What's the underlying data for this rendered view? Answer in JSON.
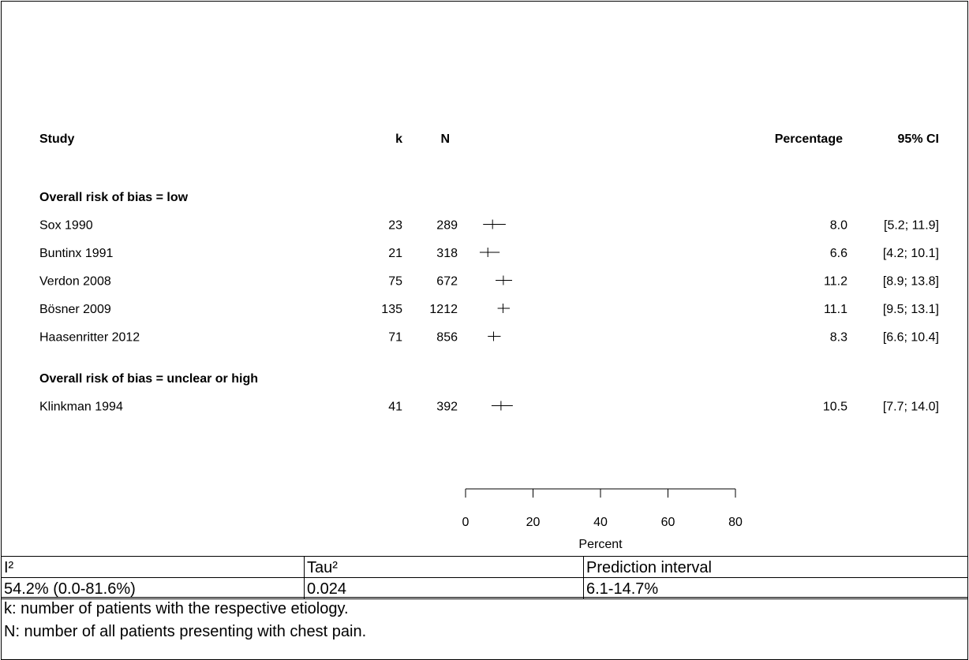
{
  "chart_data": {
    "type": "forest",
    "headers": {
      "study": "Study",
      "k": "k",
      "n": "N",
      "estimate": "Percentage",
      "ci": "95% CI"
    },
    "groups": [
      {
        "label": "Overall risk of bias = low",
        "studies": [
          {
            "name": "Sox 1990",
            "k": "23",
            "n": "289",
            "est": 8.0,
            "lo": 5.2,
            "hi": 11.9,
            "label": "8.0",
            "ci": "[5.2; 11.9]"
          },
          {
            "name": "Buntinx 1991",
            "k": "21",
            "n": "318",
            "est": 6.6,
            "lo": 4.2,
            "hi": 10.1,
            "label": "6.6",
            "ci": "[4.2; 10.1]"
          },
          {
            "name": "Verdon 2008",
            "k": "75",
            "n": "672",
            "est": 11.2,
            "lo": 8.9,
            "hi": 13.8,
            "label": "11.2",
            "ci": "[8.9; 13.8]"
          },
          {
            "name": "Bösner 2009",
            "k": "135",
            "n": "1212",
            "est": 11.1,
            "lo": 9.5,
            "hi": 13.1,
            "label": "11.1",
            "ci": "[9.5; 13.1]"
          },
          {
            "name": "Haasenritter 2012",
            "k": "71",
            "n": "856",
            "est": 8.3,
            "lo": 6.6,
            "hi": 10.4,
            "label": "8.3",
            "ci": "[6.6; 10.4]"
          }
        ]
      },
      {
        "label": "Overall risk of bias = unclear or high",
        "studies": [
          {
            "name": "Klinkman 1994",
            "k": "41",
            "n": "392",
            "est": 10.5,
            "lo": 7.7,
            "hi": 14.0,
            "label": "10.5",
            "ci": "[7.7; 14.0]"
          }
        ]
      }
    ],
    "x_axis": {
      "label": "Percent",
      "ticks": [
        0,
        20,
        40,
        60,
        80
      ],
      "range": [
        0,
        80
      ]
    }
  },
  "stats_table": {
    "headers": [
      "I²",
      "Tau²",
      "Prediction interval"
    ],
    "values": [
      "54.2% (0.0-81.6%)",
      "0.024",
      "6.1-14.7%"
    ]
  },
  "notes": [
    "k: number of patients with the respective etiology.",
    "N: number of all patients presenting with chest pain."
  ]
}
